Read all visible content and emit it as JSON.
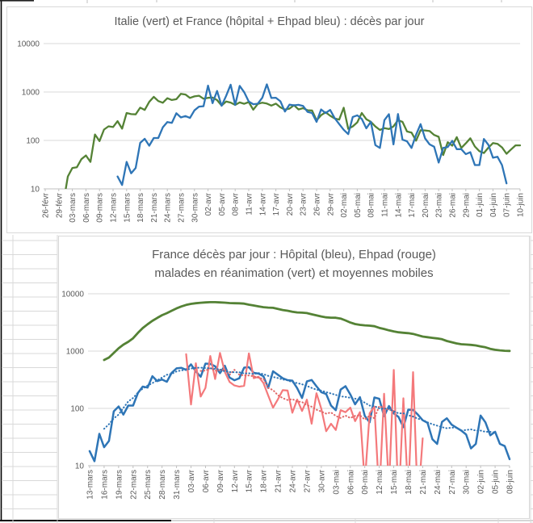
{
  "page": {
    "background": "#FFFFFF"
  },
  "spreadsheet": {
    "gridline_color": "#D9D9D9",
    "object_border_color": "#000000"
  },
  "chart_data": [
    {
      "type": "line",
      "title": "Italie (vert) et France (hôpital + Ehpad bleu) : décès par jour",
      "y_scale": "log",
      "y_ticks": [
        10,
        100,
        1000,
        10000
      ],
      "ylim": [
        10,
        10000
      ],
      "grid": "horizontal",
      "legend": "none",
      "x_tick_step_days": 3,
      "total_days": 105,
      "x_tick_labels": [
        "26-févr",
        "29-févr",
        "03-mars",
        "06-mars",
        "09-mars",
        "12-mars",
        "15-mars",
        "18-mars",
        "21-mars",
        "24-mars",
        "27-mars",
        "30-mars",
        "02-avr",
        "05-avr",
        "08-avr",
        "11-avr",
        "14-avr",
        "17-avr",
        "20-avr",
        "23-avr",
        "26-avr",
        "29-avr",
        "02-mai",
        "05-mai",
        "08-mai",
        "11-mai",
        "14-mai",
        "17-mai",
        "20-mai",
        "23-mai",
        "26-mai",
        "29-mai",
        "01-juin",
        "04-juin",
        "07-juin",
        "10-juin"
      ],
      "series": [
        {
          "name": "Italie décès par jour",
          "color": "#548235",
          "line_style": "solid",
          "start_day": 3,
          "values": [
            8,
            5,
            18,
            27,
            28,
            41,
            49,
            36,
            133,
            97,
            168,
            196,
            189,
            250,
            175,
            368,
            349,
            345,
            475,
            427,
            627,
            793,
            651,
            601,
            743,
            683,
            712,
            919,
            889,
            756,
            812,
            837,
            727,
            760,
            766,
            681,
            525,
            636,
            604,
            542,
            610,
            570,
            619,
            431,
            566,
            602,
            578,
            525,
            575,
            482,
            433,
            454,
            534,
            437,
            464,
            420,
            415,
            260,
            333,
            382,
            323,
            285,
            269,
            474,
            174,
            195,
            236,
            369,
            274,
            243,
            194,
            165,
            179,
            172,
            195,
            262,
            242,
            153,
            145,
            99,
            162,
            161,
            156,
            130,
            119,
            50,
            92,
            78,
            117,
            70,
            87,
            111,
            75,
            60,
            55,
            71,
            88,
            85,
            72,
            53,
            65,
            79,
            79
          ]
        },
        {
          "name": "France hôpital + Ehpad décès par jour",
          "color": "#2E75B6",
          "line_style": "solid",
          "start_day": 16,
          "values": [
            18,
            12,
            36,
            21,
            27,
            89,
            108,
            78,
            112,
            112,
            186,
            240,
            231,
            365,
            299,
            319,
            292,
            418,
            499,
            509,
            1355,
            588,
            1053,
            518,
            833,
            1417,
            541,
            1341,
            987,
            635,
            561,
            574,
            762,
            1438,
            753,
            761,
            642,
            395,
            547,
            531,
            544,
            516,
            389,
            369,
            242,
            437,
            367,
            427,
            289,
            218,
            166,
            135,
            306,
            330,
            278,
            178,
            243,
            80,
            70,
            263,
            348,
            83,
            351,
            104,
            96,
            70,
            131,
            217,
            110,
            83,
            74,
            35,
            70,
            73,
            98,
            66,
            66,
            52,
            57,
            31,
            31,
            107,
            81,
            44,
            46,
            31,
            13
          ]
        }
      ]
    },
    {
      "type": "line",
      "title_line1": "France décès par jour : Hôpital (bleu), Ehpad (rouge)",
      "title_line2": "malades en réanimation (vert) et moyennes mobiles",
      "y_scale": "log",
      "y_ticks": [
        10,
        100,
        1000,
        10000
      ],
      "ylim": [
        10,
        10000
      ],
      "grid": "horizontal",
      "legend": "none",
      "x_tick_step_days": 3,
      "total_days": 87,
      "x_tick_labels": [
        "13-mars",
        "16-mars",
        "19-mars",
        "22-mars",
        "25-mars",
        "28-mars",
        "31-mars",
        "03-avr",
        "06-avr",
        "09-avr",
        "12-avr",
        "15-avr",
        "18-avr",
        "21-avr",
        "24-avr",
        "27-avr",
        "30-avr",
        "03-mai",
        "06-mai",
        "09-mai",
        "12-mai",
        "15-mai",
        "18-mai",
        "21-mai",
        "24-mai",
        "27-mai",
        "30-mai",
        "02-juin",
        "05-juin",
        "08-juin"
      ],
      "series": [
        {
          "name": "malades en réanimation",
          "color": "#548235",
          "line_style": "solid",
          "start_day": 3,
          "values": [
            699,
            771,
            931,
            1122,
            1297,
            1453,
            1674,
            2080,
            2516,
            2935,
            3375,
            3787,
            4236,
            4592,
            5056,
            5565,
            6017,
            6399,
            6662,
            6838,
            6978,
            7072,
            7131,
            7148,
            7066,
            7004,
            6883,
            6845,
            6821,
            6730,
            6457,
            6248,
            6027,
            5833,
            5744,
            5683,
            5433,
            5218,
            5053,
            4870,
            4725,
            4682,
            4608,
            4387,
            4207,
            4019,
            3878,
            3827,
            3819,
            3696,
            3430,
            3147,
            2961,
            2868,
            2812,
            2776,
            2712,
            2542,
            2428,
            2299,
            2203,
            2132,
            2087,
            2053,
            1998,
            1894,
            1794,
            1745,
            1701,
            1665,
            1609,
            1501,
            1429,
            1361,
            1319,
            1302,
            1282,
            1253,
            1206,
            1163,
            1094,
            1053,
            1028,
            1013,
            1005
          ]
        },
        {
          "name": "Hôpital décès par jour",
          "color": "#2E75B6",
          "line_style": "solid",
          "start_day": 0,
          "values": [
            18,
            12,
            36,
            21,
            27,
            89,
            108,
            78,
            112,
            112,
            186,
            240,
            231,
            365,
            299,
            319,
            292,
            418,
            499,
            509,
            471,
            588,
            441,
            357,
            605,
            597,
            541,
            412,
            554,
            345,
            310,
            335,
            514,
            524,
            417,
            405,
            364,
            227,
            444,
            387,
            336,
            311,
            305,
            226,
            152,
            295,
            313,
            243,
            191,
            178,
            112,
            93,
            213,
            244,
            175,
            118,
            157,
            74,
            57,
            155,
            147,
            73,
            110,
            82,
            71,
            47,
            95,
            94,
            78,
            62,
            56,
            29,
            24,
            58,
            67,
            52,
            46,
            41,
            35,
            20,
            24,
            75,
            57,
            34,
            39,
            24,
            22,
            13
          ]
        },
        {
          "name": "Ehpad décès par jour",
          "color": "#F4797B",
          "line_style": "solid",
          "start_day": 20,
          "values": [
            884,
            117,
            612,
            161,
            228,
            820,
            326,
            929,
            433,
            290,
            251,
            239,
            248,
            914,
            336,
            356,
            278,
            168,
            103,
            144,
            208,
            205,
            84,
            143,
            90,
            142,
            54,
            184,
            98,
            40,
            54,
            42,
            93,
            86,
            103,
            60,
            86,
            5,
            82,
            108,
            3,
            180,
            4,
            470,
            2,
            150,
            3,
            429,
            2,
            30
          ]
        },
        {
          "name": "moyenne mobile Ehpad",
          "color": "#E06666",
          "line_style": "dotted",
          "start_day": 23,
          "values": [
            450,
            456,
            501,
            455,
            468,
            470,
            388,
            472,
            387,
            376,
            375,
            363,
            343,
            328,
            228,
            209,
            170,
            151,
            140,
            145,
            132,
            129,
            114,
            107,
            95,
            88,
            81,
            85,
            74,
            68,
            75,
            68,
            74,
            76,
            64,
            75,
            67,
            110,
            100,
            95,
            90
          ]
        },
        {
          "name": "moyenne mobile Hôpital",
          "color": "#2E75B6",
          "line_style": "dotted",
          "start_day": 3,
          "values": [
            44,
            53,
            67,
            78,
            102,
            132,
            152,
            189,
            221,
            250,
            276,
            309,
            346,
            386,
            401,
            442,
            460,
            469,
            496,
            510,
            514,
            506,
            501,
            487,
            481,
            442,
            430,
            428,
            428,
            407,
            410,
            398,
            414,
            395,
            369,
            353,
            339,
            319,
            309,
            287,
            277,
            264,
            246,
            228,
            212,
            204,
            192,
            182,
            172,
            162,
            159,
            153,
            148,
            140,
            126,
            112,
            110,
            100,
            99,
            98,
            89,
            82,
            82,
            76,
            72,
            66,
            63,
            57,
            53,
            50,
            47,
            45,
            46,
            46,
            41,
            42,
            43,
            41,
            41,
            39,
            39,
            38
          ]
        }
      ]
    }
  ]
}
